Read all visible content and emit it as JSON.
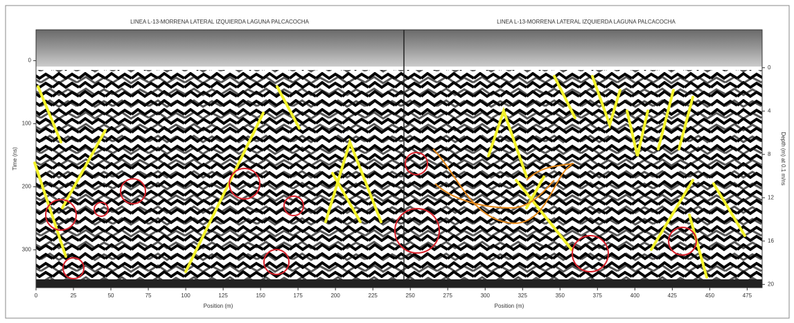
{
  "chart_data": {
    "type": "radargram",
    "titles": [
      "LINEA L-13-MORRENA LATERAL IZQUIERDA LAGUNA PALCACOCHA",
      "LINEA L-13-MORRENA LATERAL IZQUIERDA LAGUNA PALCACOCHA"
    ],
    "xlabels": [
      "Position (m)",
      "Position (m)"
    ],
    "ylabel": "Time (ns)",
    "y2label": "Depth (m) at 0.1 m/ns",
    "xlim": [
      0,
      485
    ],
    "xticks": [
      0,
      25,
      50,
      75,
      100,
      125,
      150,
      175,
      200,
      225,
      250,
      275,
      300,
      325,
      350,
      375,
      400,
      425,
      450,
      475
    ],
    "ylim": [
      -49,
      360
    ],
    "yticks": [
      0,
      100,
      200,
      300
    ],
    "y2lim": [
      -3.5,
      20.3
    ],
    "y2ticks": [
      0,
      4,
      8,
      12,
      16,
      20
    ]
  }
}
